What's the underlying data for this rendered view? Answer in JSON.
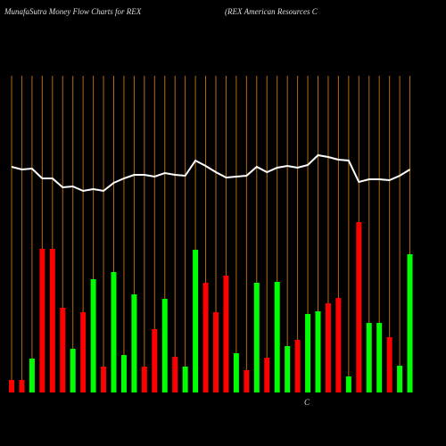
{
  "chart_data": {
    "type": "bar",
    "title": "MunafaSutra  Money Flow  Charts for REX",
    "subtitle": "(REX  American  Resources C",
    "annotation": "C",
    "categories": [
      null,
      null,
      null,
      null,
      null,
      null,
      null,
      null,
      null,
      null,
      null,
      null,
      null,
      null,
      null,
      null,
      null,
      null,
      null,
      null,
      null,
      null,
      null,
      null,
      null,
      null,
      null,
      null,
      null,
      null,
      null,
      null,
      null,
      null,
      null,
      null,
      null,
      null,
      null,
      null
    ],
    "series": [
      {
        "type": "bar",
        "values": [
          14,
          14,
          38,
          161,
          161,
          95,
          49,
          90,
          127,
          29,
          135,
          42,
          110,
          29,
          71,
          105,
          40,
          29,
          160,
          123,
          90,
          131,
          44,
          25,
          123,
          39,
          124,
          52,
          59,
          88,
          91,
          100,
          106,
          18,
          191,
          78,
          78,
          62,
          30,
          155
        ],
        "colors": [
          "#ff0000",
          "#ff0000",
          "#00ff00",
          "#ff0000",
          "#ff0000",
          "#ff0000",
          "#00ff00",
          "#ff0000",
          "#00ff00",
          "#ff0000",
          "#00ff00",
          "#00ff00",
          "#00ff00",
          "#ff0000",
          "#ff0000",
          "#00ff00",
          "#ff0000",
          "#00ff00",
          "#00ff00",
          "#ff0000",
          "#ff0000",
          "#ff0000",
          "#00ff00",
          "#ff0000",
          "#00ff00",
          "#ff0000",
          "#00ff00",
          "#00ff00",
          "#ff0000",
          "#00ff00",
          "#00ff00",
          "#ff0000",
          "#ff0000",
          "#00ff00",
          "#ff0000",
          "#00ff00",
          "#00ff00",
          "#ff0000",
          "#00ff00",
          "#00ff00"
        ]
      },
      {
        "type": "line",
        "color": "#ffffff",
        "values": [
          253,
          250,
          251,
          240,
          240,
          230,
          231,
          226,
          228,
          226,
          235,
          240,
          244,
          244,
          242,
          246,
          244,
          243,
          260,
          254,
          247,
          241,
          242,
          243,
          253,
          247,
          252,
          254,
          252,
          255,
          266,
          264,
          261,
          260,
          236,
          239,
          239,
          238,
          243,
          250
        ]
      }
    ],
    "ylim": [
      0,
      360
    ],
    "grid": true,
    "grid_color": "#b86a10"
  }
}
